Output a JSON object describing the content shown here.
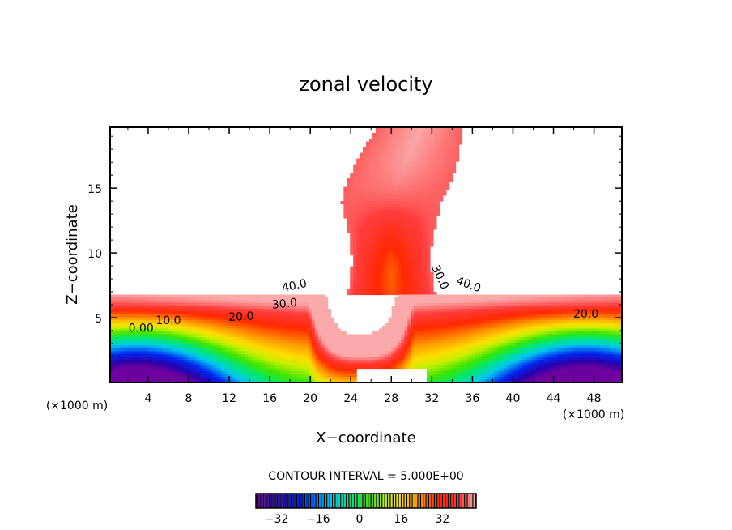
{
  "chart_data": {
    "type": "heatmap",
    "title": "zonal velocity",
    "xlabel": "X−coordinate",
    "ylabel": "Z−coordinate",
    "x_unit_left": "(×1000 m)",
    "x_unit_right": "(×1000 m)",
    "xlim": [
      0.25,
      50.75
    ],
    "ylim": [
      0,
      19.7
    ],
    "x_ticks": [
      4,
      8,
      12,
      16,
      20,
      24,
      28,
      32,
      36,
      40,
      44,
      48
    ],
    "x_tick_labels": [
      "4",
      "8",
      "12",
      "16",
      "20",
      "24",
      "28",
      "32",
      "36",
      "40",
      "44",
      "48"
    ],
    "y_ticks": [
      5,
      10,
      15
    ],
    "y_tick_labels": [
      "5",
      "10",
      "15"
    ],
    "contour_interval_text": "CONTOUR INTERVAL = 5.000E+00",
    "contour_interval": 5,
    "value_range": [
      -40,
      45
    ],
    "contour_labels": [
      {
        "text": "40.0",
        "x": 18.5,
        "y": 7.2,
        "rot": -12
      },
      {
        "text": "30.0",
        "x": 17.5,
        "y": 5.8,
        "rot": -6
      },
      {
        "text": "20.0",
        "x": 13.2,
        "y": 4.8,
        "rot": -3
      },
      {
        "text": "10.0",
        "x": 6.0,
        "y": 4.5,
        "rot": 0
      },
      {
        "text": "0.00",
        "x": 3.3,
        "y": 3.9,
        "rot": 0
      },
      {
        "text": "30.0",
        "x": 32.5,
        "y": 8.0,
        "rot": 65
      },
      {
        "text": "40.0",
        "x": 35.5,
        "y": 7.3,
        "rot": 20
      },
      {
        "text": "20.0",
        "x": 47.2,
        "y": 5.0,
        "rot": 0
      }
    ],
    "colorbar": {
      "ticks": [
        -32,
        -16,
        0,
        16,
        32
      ],
      "tick_labels": [
        "−32",
        "−16",
        "0",
        "16",
        "32"
      ],
      "range": [
        -40,
        45
      ]
    },
    "colors": {
      "frame": "#000000",
      "background": "#ffffff"
    }
  }
}
